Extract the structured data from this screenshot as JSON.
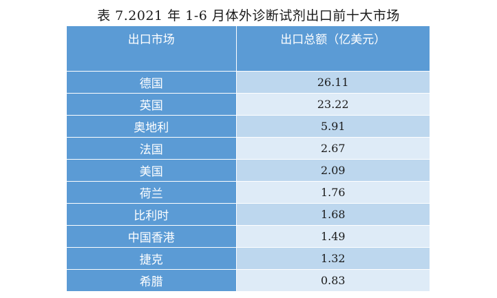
{
  "caption": "表 7.2021 年 1-6 月体外诊断试剂出口前十大市场",
  "table": {
    "headers": [
      "出口市场",
      "出口总额（亿美元）"
    ],
    "rows": [
      {
        "market": "德国",
        "value": "26.11"
      },
      {
        "market": "英国",
        "value": "23.22"
      },
      {
        "market": "奥地利",
        "value": "5.91"
      },
      {
        "market": "法国",
        "value": "2.67"
      },
      {
        "market": "美国",
        "value": "2.09"
      },
      {
        "market": "荷兰",
        "value": "1.76"
      },
      {
        "market": "比利时",
        "value": "1.68"
      },
      {
        "market": "中国香港",
        "value": "1.49"
      },
      {
        "market": "捷克",
        "value": "1.32"
      },
      {
        "market": "希腊",
        "value": "0.83"
      }
    ]
  },
  "colors": {
    "header_blue": "#5b9bd5",
    "row_light": "#bdd7ee",
    "row_lighter": "#deebf7"
  }
}
